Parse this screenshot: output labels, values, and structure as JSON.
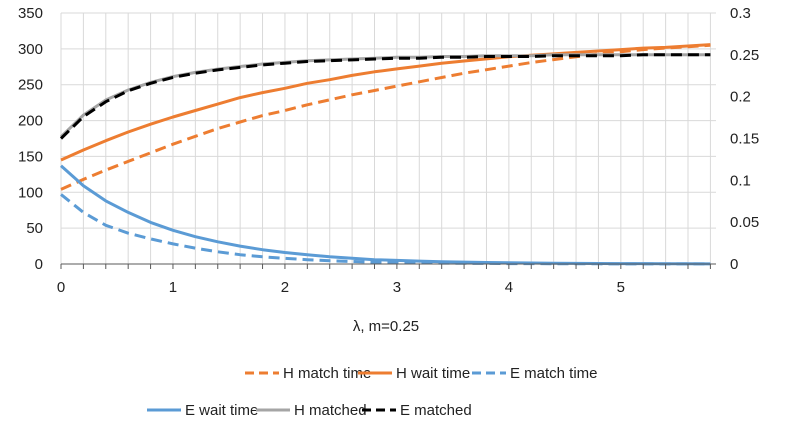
{
  "chart_data": {
    "type": "line",
    "title": "",
    "xlabel": "λ, m=0.25",
    "ylabel": "",
    "y2label": "",
    "xlim": [
      0,
      5.85
    ],
    "ylim": [
      0,
      350
    ],
    "y2lim": [
      0,
      0.3
    ],
    "x_ticks": [
      0,
      1,
      2,
      3,
      4,
      5
    ],
    "x_tick_labels": [
      "0",
      "1",
      "2",
      "3",
      "4",
      "5"
    ],
    "y_ticks": [
      0,
      50,
      100,
      150,
      200,
      250,
      300,
      350
    ],
    "y_tick_labels": [
      "0",
      "50",
      "100",
      "150",
      "200",
      "250",
      "300",
      "350"
    ],
    "y2_ticks": [
      0,
      0.05,
      0.1,
      0.15,
      0.2,
      0.25,
      0.3
    ],
    "y2_tick_labels": [
      "0",
      "0.05",
      "0.1",
      "0.15",
      "0.2",
      "0.25",
      "0.3"
    ],
    "grid": "vertical and horizontal",
    "legend_position": "bottom",
    "x": [
      0,
      0.2,
      0.4,
      0.6,
      0.8,
      1.0,
      1.2,
      1.4,
      1.6,
      1.8,
      2.0,
      2.2,
      2.4,
      2.6,
      2.8,
      3.0,
      3.2,
      3.4,
      3.6,
      3.8,
      4.0,
      4.2,
      4.4,
      4.6,
      4.8,
      5.0,
      5.2,
      5.4,
      5.6,
      5.8
    ],
    "series": [
      {
        "name": "H match time",
        "axis": "left",
        "color": "#ED7D31",
        "dash": "dashed",
        "values": [
          104,
          118,
          131,
          143,
          155,
          167,
          178,
          189,
          198,
          207,
          214,
          222,
          229,
          236,
          242,
          248,
          254,
          260,
          266,
          271,
          276,
          281,
          285,
          289,
          293,
          296,
          299,
          301,
          303,
          305
        ]
      },
      {
        "name": "H wait time",
        "axis": "left",
        "color": "#ED7D31",
        "dash": "solid",
        "values": [
          145,
          159,
          172,
          184,
          195,
          205,
          214,
          223,
          232,
          239,
          245,
          252,
          257,
          263,
          268,
          272,
          276,
          280,
          283,
          286,
          289,
          291,
          293,
          295,
          297,
          299,
          301,
          302,
          304,
          306
        ]
      },
      {
        "name": "E match time",
        "axis": "left",
        "color": "#5B9BD5",
        "dash": "dashed",
        "values": [
          97,
          72,
          54,
          43,
          35,
          28,
          22,
          17,
          13,
          10,
          8,
          6,
          4.5,
          3.5,
          2.5,
          2,
          1.5,
          1.2,
          1,
          0.8,
          0.6,
          0.5,
          0.4,
          0.3,
          0.3,
          0.2,
          0.2,
          0.1,
          0.1,
          0.1
        ]
      },
      {
        "name": "E wait time",
        "axis": "left",
        "color": "#5B9BD5",
        "dash": "solid",
        "values": [
          137,
          109,
          88,
          72,
          58,
          47,
          38,
          31,
          25,
          20,
          16,
          13,
          10,
          8,
          6,
          5,
          4,
          3.2,
          2.6,
          2.1,
          1.7,
          1.4,
          1.1,
          0.9,
          0.7,
          0.6,
          0.5,
          0.4,
          0.3,
          0.2
        ]
      },
      {
        "name": "H matched",
        "axis": "right",
        "color": "#A5A5A5",
        "dash": "solid",
        "values": [
          0.152,
          0.178,
          0.196,
          0.208,
          0.217,
          0.224,
          0.229,
          0.233,
          0.236,
          0.239,
          0.241,
          0.243,
          0.244,
          0.245,
          0.246,
          0.247,
          0.247,
          0.248,
          0.248,
          0.249,
          0.249,
          0.249,
          0.25,
          0.25,
          0.25,
          0.25,
          0.25,
          0.25,
          0.25,
          0.25
        ]
      },
      {
        "name": "E matched",
        "axis": "right",
        "color": "#000000",
        "dash": "dashed",
        "values": [
          0.15,
          0.176,
          0.194,
          0.207,
          0.216,
          0.223,
          0.228,
          0.232,
          0.235,
          0.238,
          0.24,
          0.242,
          0.243,
          0.244,
          0.245,
          0.246,
          0.246,
          0.247,
          0.247,
          0.248,
          0.248,
          0.248,
          0.249,
          0.249,
          0.249,
          0.249,
          0.25,
          0.25,
          0.25,
          0.25
        ]
      }
    ]
  }
}
